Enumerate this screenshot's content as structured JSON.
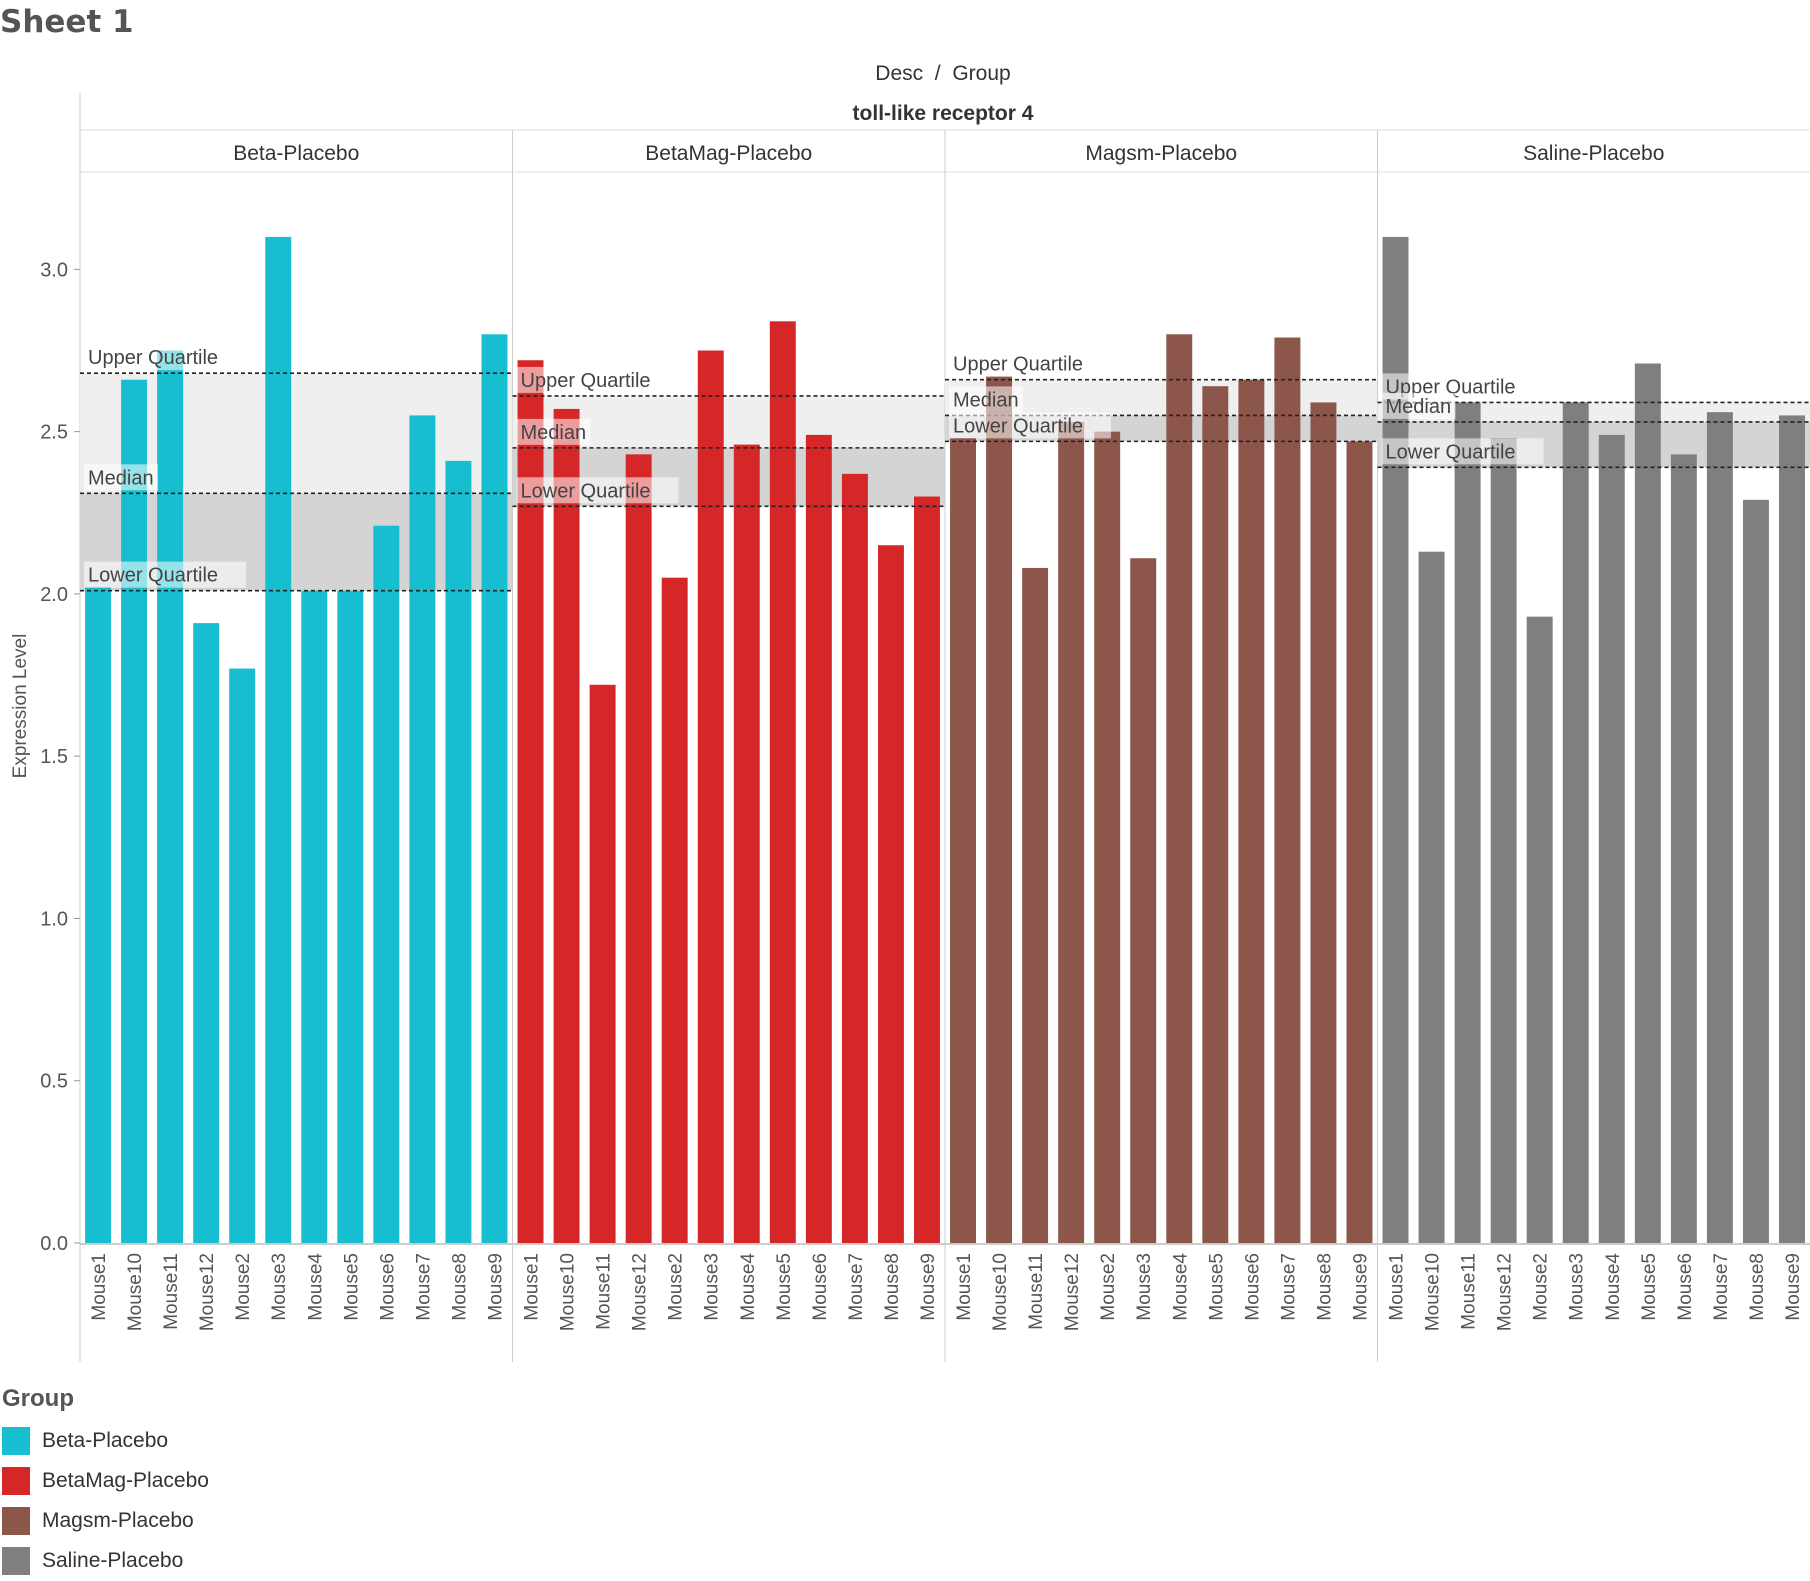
{
  "sheet": {
    "title": "Sheet 1"
  },
  "chart_data": {
    "type": "bar",
    "header": "Desc  /  Group",
    "title": "toll-like receptor 4",
    "ylabel": "Expression Level",
    "xlabel": "",
    "ylim": [
      0,
      3.3
    ],
    "yticks": [
      "0.0",
      "0.5",
      "1.0",
      "1.5",
      "2.0",
      "2.5",
      "3.0"
    ],
    "ytick_values": [
      0,
      0.5,
      1.0,
      1.5,
      2.0,
      2.5,
      3.0
    ],
    "grid": false,
    "legend_title": "Group",
    "legend_position": "bottom-left",
    "categories": [
      "Mouse1",
      "Mouse10",
      "Mouse11",
      "Mouse12",
      "Mouse2",
      "Mouse3",
      "Mouse4",
      "Mouse5",
      "Mouse6",
      "Mouse7",
      "Mouse8",
      "Mouse9"
    ],
    "reference_labels": {
      "upper": "Upper Quartile",
      "median": "Median",
      "lower": "Lower Quartile"
    },
    "panels": [
      {
        "name": "Beta-Placebo",
        "color": "#17becf",
        "values": [
          2.02,
          2.66,
          2.75,
          1.91,
          1.77,
          3.1,
          2.01,
          2.01,
          2.21,
          2.55,
          2.41,
          2.8
        ],
        "upper_quartile": 2.68,
        "median": 2.31,
        "lower_quartile": 2.01
      },
      {
        "name": "BetaMag-Placebo",
        "color": "#d62728",
        "values": [
          2.72,
          2.57,
          1.72,
          2.43,
          2.05,
          2.75,
          2.46,
          2.84,
          2.49,
          2.37,
          2.15,
          2.3
        ],
        "upper_quartile": 2.61,
        "median": 2.45,
        "lower_quartile": 2.27
      },
      {
        "name": "Magsm-Placebo",
        "color": "#8c564b",
        "values": [
          2.48,
          2.67,
          2.08,
          2.53,
          2.5,
          2.11,
          2.8,
          2.64,
          2.66,
          2.79,
          2.59,
          2.47
        ],
        "upper_quartile": 2.66,
        "median": 2.55,
        "lower_quartile": 2.47
      },
      {
        "name": "Saline-Placebo",
        "color": "#7f7f7f",
        "values": [
          3.1,
          2.13,
          2.59,
          2.48,
          1.93,
          2.59,
          2.49,
          2.71,
          2.43,
          2.56,
          2.29,
          2.55
        ],
        "upper_quartile": 2.59,
        "median": 2.53,
        "lower_quartile": 2.39
      }
    ]
  },
  "legend": {
    "title": "Group",
    "items": [
      {
        "label": "Beta-Placebo",
        "color": "#17becf"
      },
      {
        "label": "BetaMag-Placebo",
        "color": "#d62728"
      },
      {
        "label": "Magsm-Placebo",
        "color": "#8c564b"
      },
      {
        "label": "Saline-Placebo",
        "color": "#7f7f7f"
      }
    ]
  }
}
